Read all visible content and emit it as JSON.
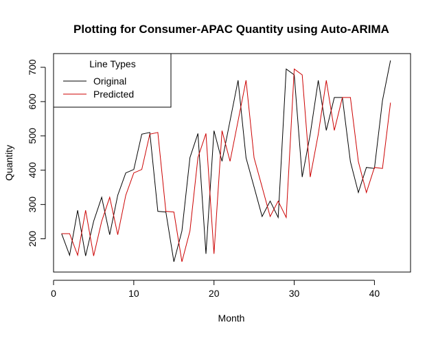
{
  "chart_data": {
    "type": "line",
    "title": "Plotting for Consumer-APAC Quantity using Auto-ARIMA",
    "xlabel": "Month",
    "ylabel": "Quantity",
    "xlim": [
      0,
      44.5
    ],
    "ylim": [
      103,
      740
    ],
    "xticks": [
      0,
      10,
      20,
      30,
      40
    ],
    "yticks": [
      200,
      300,
      400,
      500,
      600,
      700
    ],
    "legend": {
      "title": "Line Types",
      "position": "top-left",
      "entries": [
        "Original",
        "Predicted"
      ]
    },
    "x": [
      1,
      2,
      3,
      4,
      5,
      6,
      7,
      8,
      9,
      10,
      11,
      12,
      13,
      14,
      15,
      16,
      17,
      18,
      19,
      20,
      21,
      22,
      23,
      24,
      25,
      26,
      27,
      28,
      29,
      30,
      31,
      32,
      33,
      34,
      35,
      36,
      37,
      38,
      39,
      40,
      41,
      42
    ],
    "series": [
      {
        "name": "Original",
        "color": "#000000",
        "values": [
          215,
          152,
          283,
          150,
          251,
          321,
          212,
          327,
          392,
          402,
          505,
          510,
          280,
          278,
          133,
          223,
          437,
          507,
          156,
          515,
          426,
          544,
          662,
          436,
          351,
          265,
          310,
          262,
          695,
          678,
          380,
          505,
          662,
          516,
          612,
          612,
          425,
          335,
          408,
          405,
          603,
          720
        ]
      },
      {
        "name": "Predicted",
        "color": "#cc0000",
        "values": [
          215,
          215,
          152,
          283,
          150,
          251,
          321,
          212,
          327,
          392,
          402,
          505,
          510,
          280,
          278,
          133,
          223,
          437,
          507,
          156,
          515,
          426,
          544,
          662,
          436,
          351,
          265,
          310,
          262,
          695,
          678,
          380,
          505,
          662,
          516,
          612,
          612,
          425,
          335,
          408,
          405,
          597
        ]
      }
    ]
  }
}
